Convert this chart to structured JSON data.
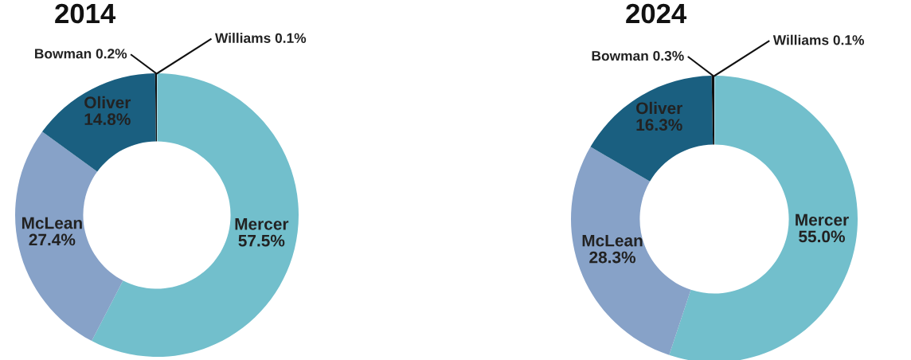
{
  "chart_data": [
    {
      "type": "donut",
      "title": "2014",
      "categories": [
        "Williams",
        "Mercer",
        "McLean",
        "Oliver",
        "Bowman"
      ],
      "values": [
        0.1,
        57.5,
        27.4,
        14.8,
        0.2
      ],
      "colors": [
        "#a9d9e6",
        "#72bfcc",
        "#87a2c8",
        "#1a5f80",
        "#111111"
      ],
      "value_labels": [
        "0.1%",
        "57.5%",
        "27.4%",
        "14.8%",
        "0.2%"
      ]
    },
    {
      "type": "donut",
      "title": "2024",
      "categories": [
        "Williams",
        "Mercer",
        "McLean",
        "Oliver",
        "Bowman"
      ],
      "values": [
        0.1,
        55.0,
        28.3,
        16.3,
        0.3
      ],
      "colors": [
        "#a9d9e6",
        "#72bfcc",
        "#87a2c8",
        "#1a5f80",
        "#111111"
      ],
      "value_labels": [
        "0.1%",
        "55.0%",
        "28.3%",
        "16.3%",
        "0.3%"
      ]
    }
  ]
}
